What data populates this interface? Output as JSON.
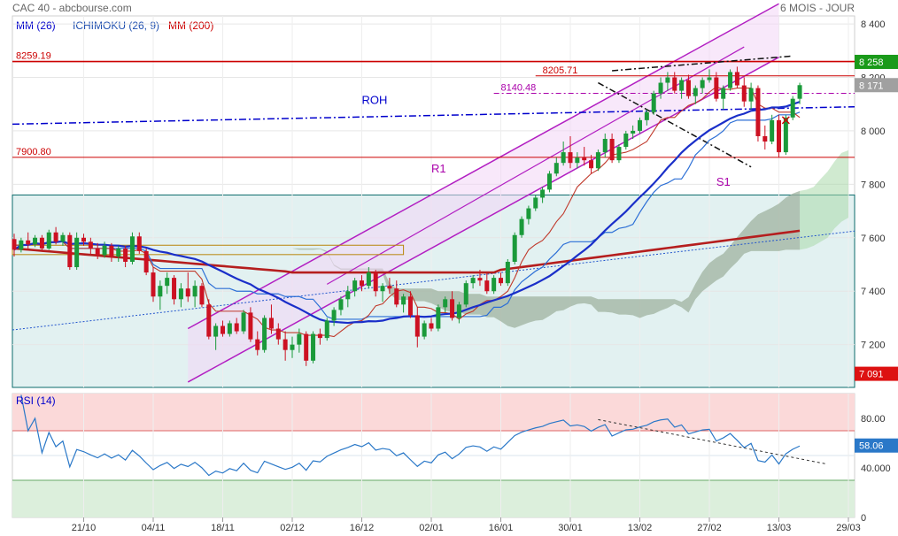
{
  "header": {
    "left": "CAC 40 - abcbourse.com",
    "right": "6 MOIS - JOUR"
  },
  "legend": [
    {
      "text": "MM (26)",
      "color": "#0000cc"
    },
    {
      "text": "ICHIMOKU (26, 9)",
      "color": "#1f4fb0"
    },
    {
      "text": "MM (200)",
      "color": "#cc0000"
    }
  ],
  "chart_data": [
    {
      "type": "candlestick",
      "title": "CAC 40",
      "ylim": [
        7040,
        8430
      ],
      "y_ticks": [
        "8 400",
        "8 200",
        "8 000",
        "7 800",
        "7 600",
        "7 400",
        "7 200"
      ],
      "x_ticks": [
        "21/10",
        "04/11",
        "18/11",
        "02/12",
        "16/12",
        "02/01",
        "16/01",
        "30/01",
        "13/02",
        "27/02",
        "13/03",
        "29/03"
      ],
      "x_tick_index": [
        10,
        20,
        30,
        40,
        50,
        60,
        70,
        80,
        90,
        100,
        110,
        120
      ],
      "price_tags": [
        {
          "label": "8 258",
          "value": 8258,
          "color": "#1a9a1a"
        },
        {
          "label": "8 171",
          "value": 8171,
          "color": "#a0a0a0"
        },
        {
          "label": "7 091",
          "value": 7091,
          "color": "#dd1111"
        }
      ],
      "levels": [
        {
          "label": "8259.19",
          "value": 8259.19,
          "color": "#cc0000"
        },
        {
          "label": "8205.71",
          "value": 8205.71,
          "color": "#cc0000"
        },
        {
          "label": "8140.48",
          "value": 8140.48,
          "color": "#aa00aa"
        },
        {
          "label": "7900.80",
          "value": 7900.8,
          "color": "#cc0000"
        }
      ],
      "annotations": [
        {
          "text": "ROH",
          "color": "#0000cc",
          "i": 50,
          "v": 8100
        },
        {
          "text": "R1",
          "color": "#aa00aa",
          "i": 60,
          "v": 7845
        },
        {
          "text": "S1",
          "color": "#aa00aa",
          "i": 101,
          "v": 7795
        }
      ],
      "candles": [
        [
          7595,
          7615,
          7530,
          7555
        ],
        [
          7555,
          7600,
          7545,
          7590
        ],
        [
          7590,
          7620,
          7560,
          7575
        ],
        [
          7575,
          7610,
          7565,
          7600
        ],
        [
          7600,
          7610,
          7550,
          7560
        ],
        [
          7560,
          7630,
          7555,
          7620
        ],
        [
          7620,
          7640,
          7575,
          7585
        ],
        [
          7585,
          7620,
          7570,
          7610
        ],
        [
          7610,
          7620,
          7480,
          7490
        ],
        [
          7490,
          7620,
          7480,
          7600
        ],
        [
          7600,
          7615,
          7570,
          7585
        ],
        [
          7585,
          7600,
          7540,
          7560
        ],
        [
          7560,
          7580,
          7520,
          7535
        ],
        [
          7535,
          7585,
          7525,
          7570
        ],
        [
          7570,
          7580,
          7510,
          7530
        ],
        [
          7530,
          7570,
          7510,
          7560
        ],
        [
          7560,
          7570,
          7490,
          7510
        ],
        [
          7510,
          7620,
          7500,
          7605
        ],
        [
          7605,
          7620,
          7540,
          7550
        ],
        [
          7550,
          7560,
          7460,
          7470
        ],
        [
          7470,
          7490,
          7360,
          7380
        ],
        [
          7380,
          7440,
          7330,
          7420
        ],
        [
          7420,
          7470,
          7390,
          7450
        ],
        [
          7450,
          7460,
          7350,
          7370
        ],
        [
          7370,
          7430,
          7340,
          7410
        ],
        [
          7410,
          7470,
          7360,
          7380
        ],
        [
          7380,
          7440,
          7340,
          7420
        ],
        [
          7420,
          7430,
          7340,
          7350
        ],
        [
          7350,
          7370,
          7220,
          7230
        ],
        [
          7230,
          7280,
          7180,
          7270
        ],
        [
          7270,
          7290,
          7230,
          7240
        ],
        [
          7240,
          7290,
          7230,
          7280
        ],
        [
          7280,
          7300,
          7240,
          7250
        ],
        [
          7250,
          7330,
          7240,
          7320
        ],
        [
          7320,
          7340,
          7210,
          7220
        ],
        [
          7220,
          7250,
          7160,
          7180
        ],
        [
          7180,
          7310,
          7170,
          7300
        ],
        [
          7300,
          7350,
          7240,
          7260
        ],
        [
          7260,
          7280,
          7200,
          7220
        ],
        [
          7220,
          7250,
          7140,
          7180
        ],
        [
          7180,
          7230,
          7150,
          7200
        ],
        [
          7200,
          7260,
          7170,
          7240
        ],
        [
          7240,
          7250,
          7120,
          7140
        ],
        [
          7140,
          7250,
          7130,
          7240
        ],
        [
          7240,
          7260,
          7200,
          7225
        ],
        [
          7225,
          7300,
          7215,
          7290
        ],
        [
          7290,
          7340,
          7270,
          7330
        ],
        [
          7330,
          7380,
          7310,
          7370
        ],
        [
          7370,
          7420,
          7340,
          7400
        ],
        [
          7400,
          7450,
          7380,
          7440
        ],
        [
          7440,
          7460,
          7400,
          7420
        ],
        [
          7420,
          7490,
          7410,
          7470
        ],
        [
          7470,
          7480,
          7380,
          7400
        ],
        [
          7400,
          7430,
          7360,
          7420
        ],
        [
          7420,
          7450,
          7390,
          7410
        ],
        [
          7410,
          7440,
          7340,
          7350
        ],
        [
          7350,
          7390,
          7320,
          7380
        ],
        [
          7380,
          7400,
          7300,
          7310
        ],
        [
          7310,
          7340,
          7190,
          7230
        ],
        [
          7230,
          7290,
          7220,
          7280
        ],
        [
          7280,
          7300,
          7250,
          7260
        ],
        [
          7260,
          7350,
          7250,
          7340
        ],
        [
          7340,
          7380,
          7320,
          7370
        ],
        [
          7370,
          7400,
          7290,
          7300
        ],
        [
          7300,
          7360,
          7280,
          7350
        ],
        [
          7350,
          7440,
          7340,
          7430
        ],
        [
          7430,
          7460,
          7410,
          7450
        ],
        [
          7450,
          7480,
          7420,
          7440
        ],
        [
          7440,
          7470,
          7390,
          7400
        ],
        [
          7400,
          7460,
          7390,
          7450
        ],
        [
          7450,
          7470,
          7420,
          7430
        ],
        [
          7430,
          7520,
          7420,
          7510
        ],
        [
          7510,
          7620,
          7500,
          7610
        ],
        [
          7610,
          7680,
          7600,
          7670
        ],
        [
          7670,
          7720,
          7650,
          7710
        ],
        [
          7710,
          7760,
          7700,
          7750
        ],
        [
          7750,
          7790,
          7730,
          7780
        ],
        [
          7780,
          7850,
          7770,
          7840
        ],
        [
          7840,
          7900,
          7830,
          7880
        ],
        [
          7880,
          7960,
          7870,
          7920
        ],
        [
          7920,
          7980,
          7860,
          7880
        ],
        [
          7880,
          7920,
          7860,
          7900
        ],
        [
          7900,
          7940,
          7870,
          7890
        ],
        [
          7890,
          7910,
          7840,
          7860
        ],
        [
          7860,
          7930,
          7850,
          7920
        ],
        [
          7920,
          7990,
          7900,
          7970
        ],
        [
          7970,
          7990,
          7880,
          7890
        ],
        [
          7890,
          7950,
          7880,
          7940
        ],
        [
          7940,
          8000,
          7930,
          7990
        ],
        [
          7990,
          8020,
          7970,
          8000
        ],
        [
          8000,
          8050,
          7990,
          8040
        ],
        [
          8040,
          8080,
          8020,
          8070
        ],
        [
          8070,
          8150,
          8060,
          8140
        ],
        [
          8140,
          8200,
          8120,
          8180
        ],
        [
          8180,
          8220,
          8150,
          8200
        ],
        [
          8200,
          8220,
          8140,
          8150
        ],
        [
          8150,
          8200,
          8120,
          8190
        ],
        [
          8190,
          8210,
          8120,
          8130
        ],
        [
          8130,
          8170,
          8100,
          8160
        ],
        [
          8160,
          8200,
          8140,
          8190
        ],
        [
          8190,
          8230,
          8180,
          8200
        ],
        [
          8200,
          8220,
          8110,
          8120
        ],
        [
          8120,
          8170,
          8080,
          8160
        ],
        [
          8160,
          8230,
          8150,
          8220
        ],
        [
          8220,
          8240,
          8160,
          8170
        ],
        [
          8170,
          8200,
          8090,
          8110
        ],
        [
          8110,
          8180,
          8080,
          8160
        ],
        [
          8160,
          8170,
          7960,
          7980
        ],
        [
          7980,
          8020,
          7930,
          7960
        ],
        [
          7960,
          8060,
          7950,
          8040
        ],
        [
          8040,
          8060,
          7900,
          7920
        ],
        [
          7920,
          8060,
          7910,
          8050
        ],
        [
          8050,
          8130,
          8040,
          8120
        ],
        [
          8120,
          8180,
          8100,
          8171
        ]
      ]
    },
    {
      "type": "line",
      "title": "RSI (14)",
      "ylim": [
        0,
        100
      ],
      "y_ticks": [
        "80.00",
        "40.000",
        "0"
      ],
      "value_tag": "58.06",
      "threshold_high": 70,
      "threshold_low": 30
    }
  ]
}
